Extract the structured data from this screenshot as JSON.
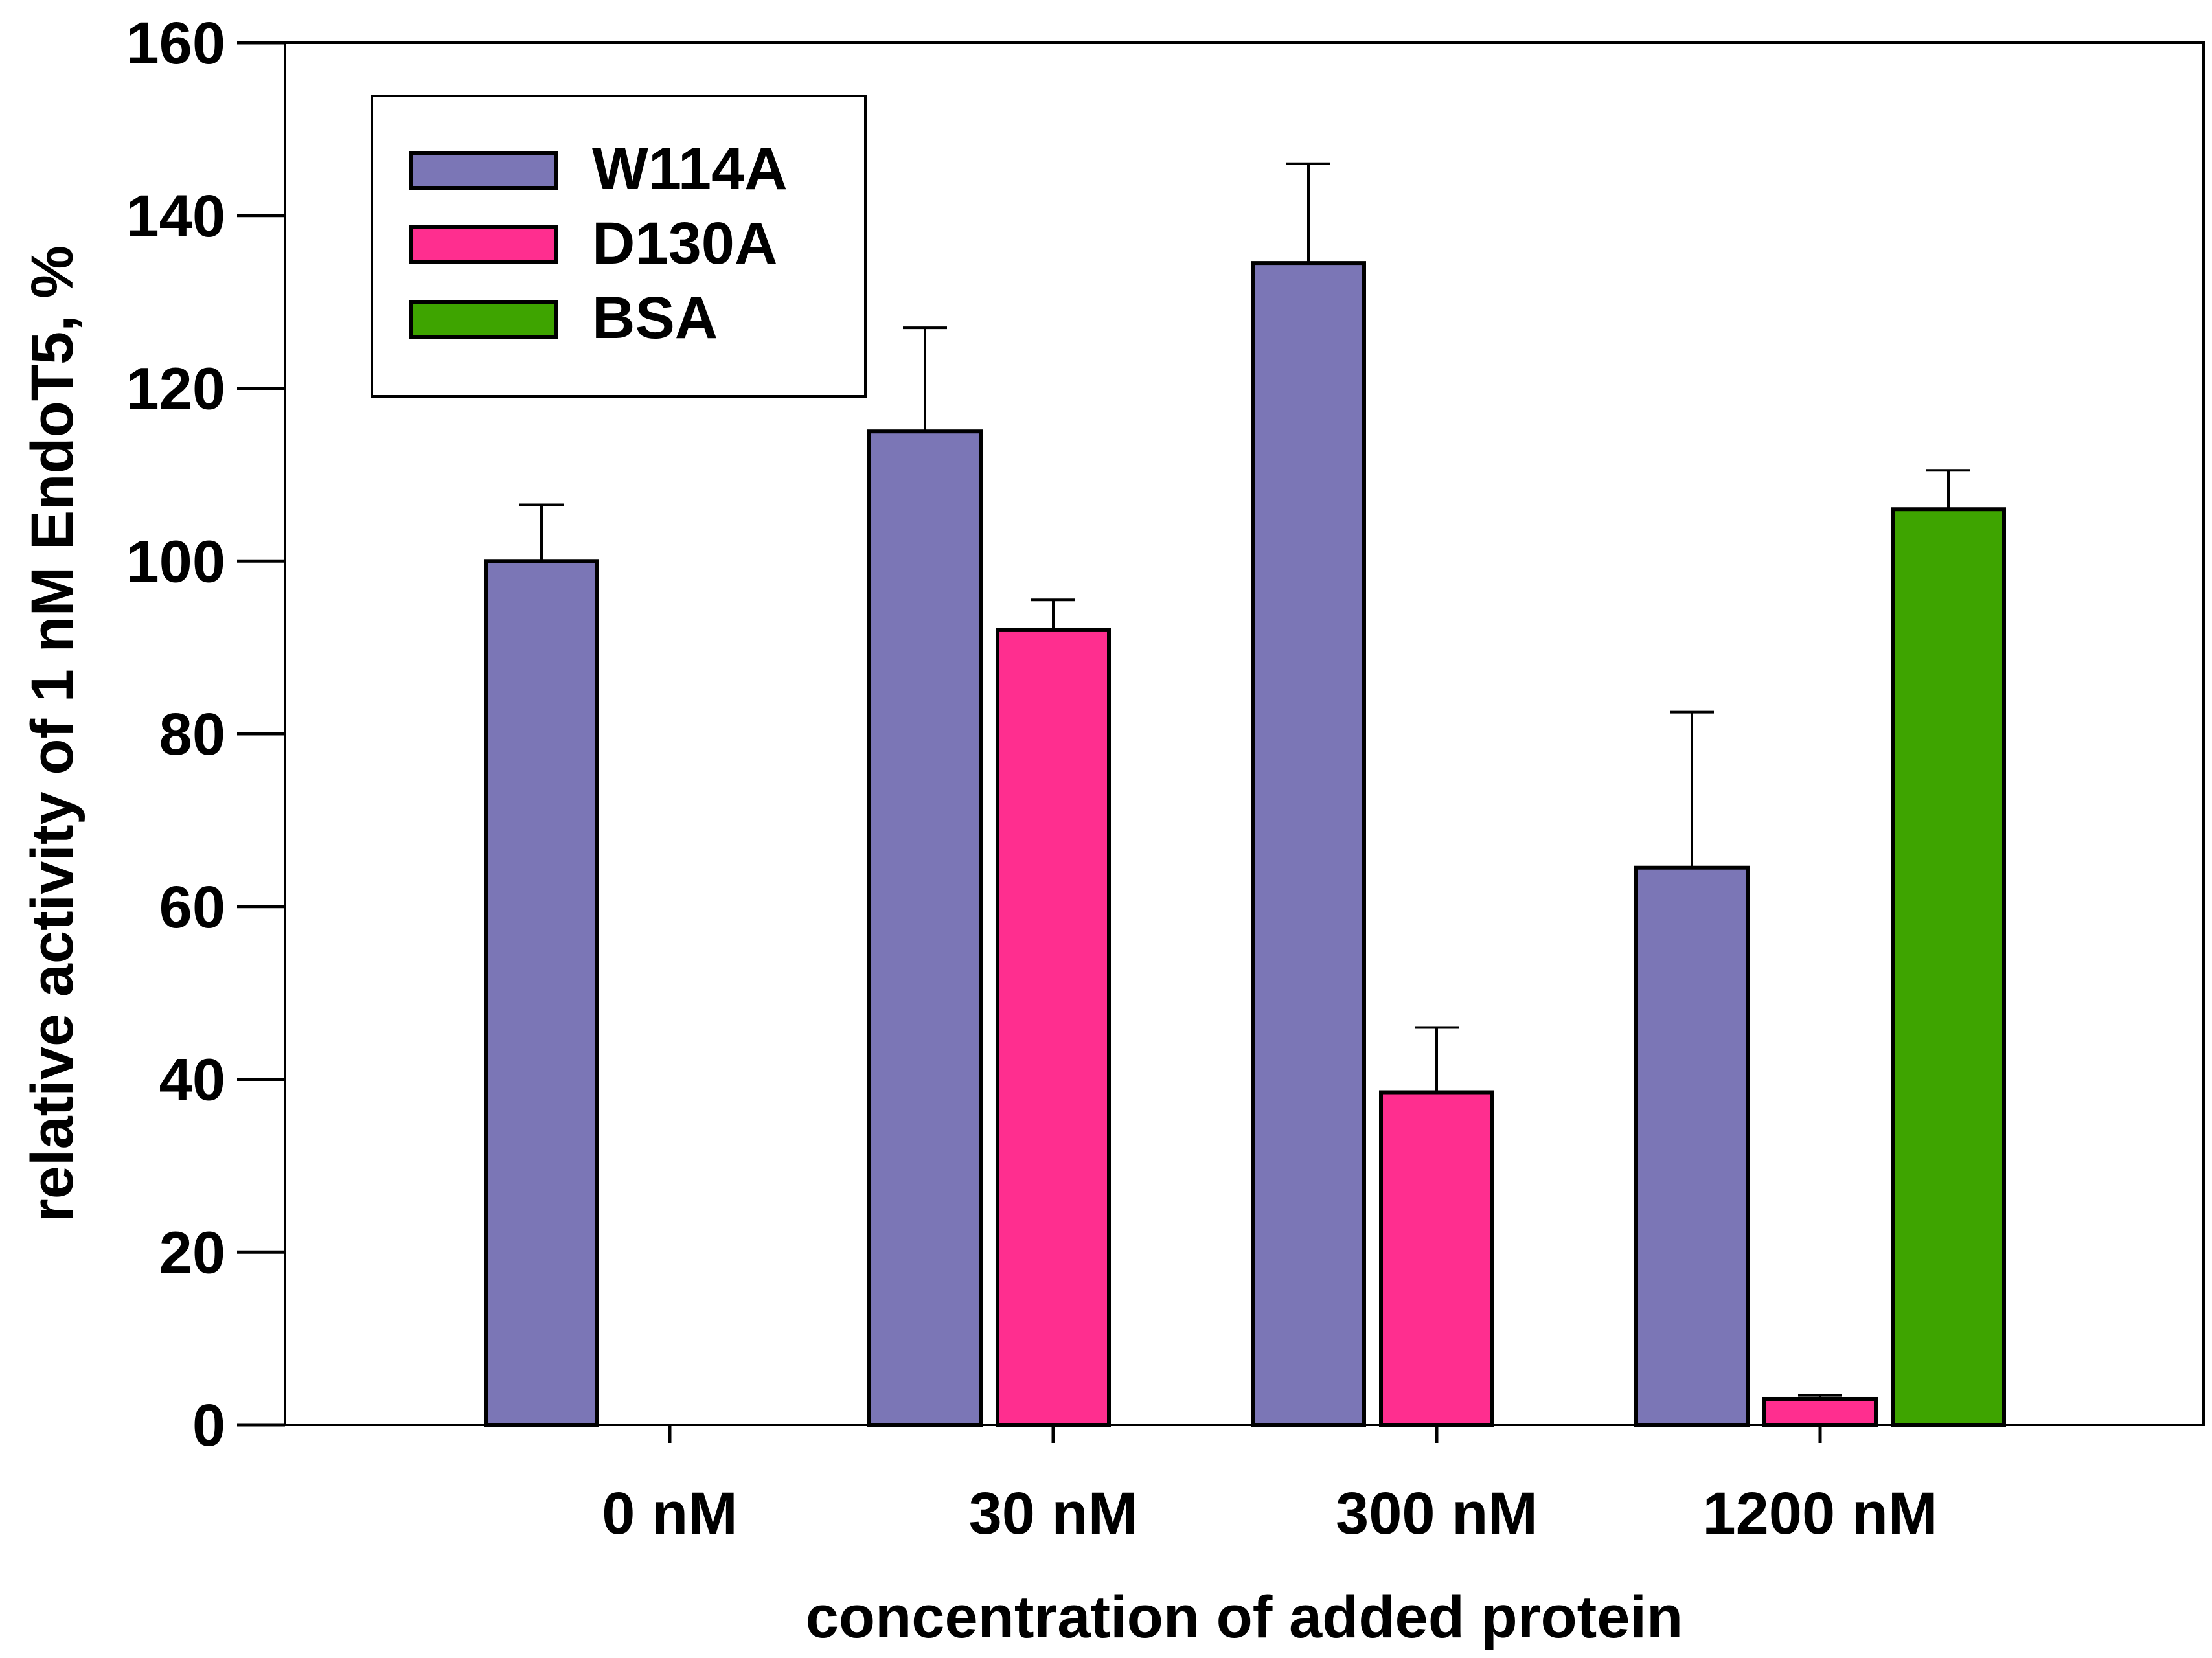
{
  "chart_data": {
    "type": "bar",
    "title": "",
    "xlabel": "concentration of added protein",
    "ylabel": "relative activity of 1 nM EndoT5, %",
    "ylim": [
      0,
      160
    ],
    "yticks": [
      "0",
      "20",
      "40",
      "60",
      "80",
      "100",
      "120",
      "140",
      "160"
    ],
    "categories": [
      "0 nM",
      "30 nM",
      "300 nM",
      "1200 nM"
    ],
    "legend_position": "top-left",
    "grid": false,
    "series": [
      {
        "name": "W114A",
        "color": "#7b76b6",
        "values": [
          100,
          115,
          134.5,
          64.5
        ],
        "errors": [
          6.5,
          12,
          11.5,
          18
        ]
      },
      {
        "name": "D130A",
        "color": "#ff2e8f",
        "values": [
          null,
          92,
          38.5,
          3
        ],
        "errors": [
          null,
          3.5,
          7.5,
          0.4
        ]
      },
      {
        "name": "BSA",
        "color": "#3ea400",
        "values": [
          null,
          null,
          null,
          106
        ],
        "errors": [
          null,
          null,
          null,
          4.5
        ]
      }
    ]
  }
}
